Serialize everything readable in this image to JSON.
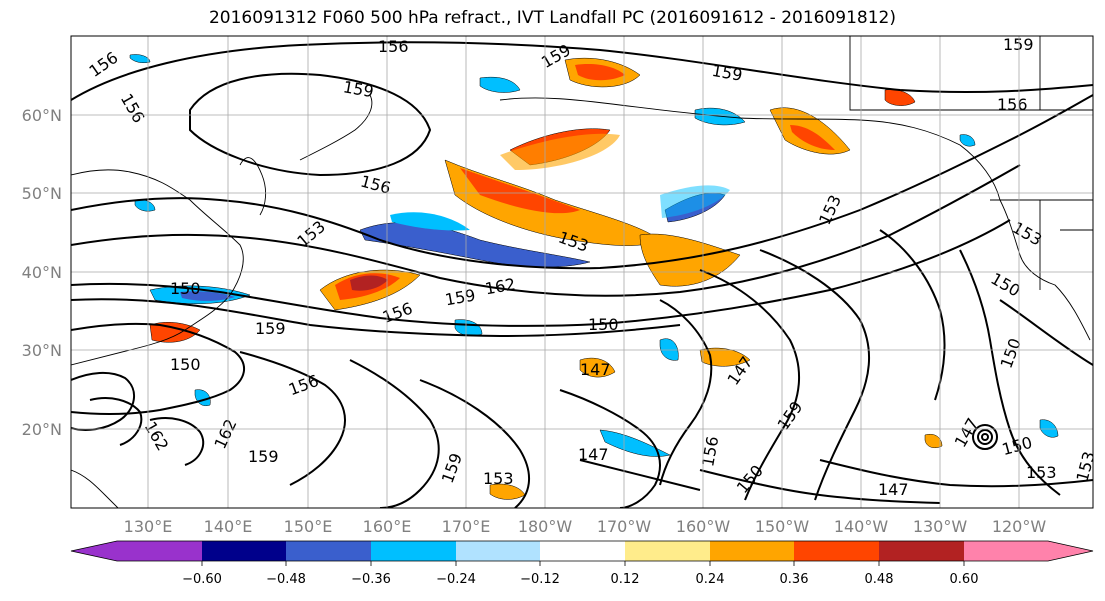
{
  "title": "2016091312 F060 500 hPa refract., IVT Landfall PC (2016091612 - 2016091812)",
  "map": {
    "lat_labels": [
      "60°N",
      "50°N",
      "40°N",
      "30°N",
      "20°N"
    ],
    "lon_labels": [
      "130°E",
      "140°E",
      "150°E",
      "160°E",
      "170°E",
      "180°W",
      "170°W",
      "160°W",
      "150°W",
      "140°W",
      "130°W",
      "120°W"
    ],
    "contour_labels": [
      "156",
      "156",
      "159",
      "159",
      "159",
      "159",
      "156",
      "156",
      "153",
      "153",
      "156",
      "153",
      "150",
      "159",
      "162",
      "150",
      "150",
      "156",
      "159",
      "153",
      "150",
      "150",
      "156",
      "147",
      "147",
      "159",
      "162",
      "162",
      "159",
      "147",
      "156",
      "150",
      "159",
      "153",
      "147",
      "147",
      "150",
      "153",
      "153"
    ]
  },
  "colorbar": {
    "ticks": [
      "−0.60",
      "−0.48",
      "−0.36",
      "−0.24",
      "−0.12",
      "0.12",
      "0.24",
      "0.36",
      "0.48",
      "0.60"
    ],
    "colors": [
      "#9932cc",
      "#00008b",
      "#3a5fcd",
      "#00bfff",
      "#b0e2ff",
      "#ffffff",
      "#ffec8b",
      "#ffa500",
      "#ff4500",
      "#b22222",
      "#ff82ab"
    ]
  }
}
